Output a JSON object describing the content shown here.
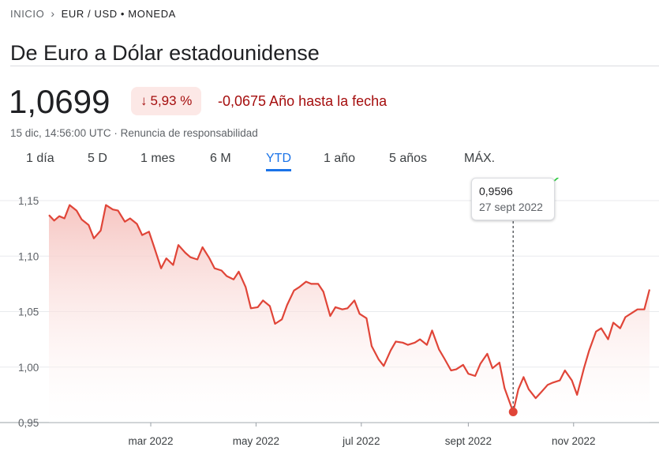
{
  "breadcrumb": {
    "home": "INICIO",
    "separator": "›",
    "current": "EUR / USD • MONEDA"
  },
  "title": "De Euro a Dólar estadounidense",
  "quote": {
    "price": "1,0699",
    "change_arrow": "↓",
    "change_percent": "5,93 %",
    "change_absolute": "-0,0675 Año hasta la fecha",
    "timestamp": "15 dic, 14:56:00 UTC",
    "meta_separator": "·",
    "disclaimer": "Renuncia de responsabilidad"
  },
  "tabs": [
    {
      "label": "1 día"
    },
    {
      "label": "5 D"
    },
    {
      "label": "1 mes"
    },
    {
      "label": "6 M"
    },
    {
      "label": "YTD"
    },
    {
      "label": "1 año"
    },
    {
      "label": "5 años"
    },
    {
      "label": "MÁX."
    }
  ],
  "active_tab": "YTD",
  "colors": {
    "line": "#e04538",
    "fill": "#f6c3bf",
    "tab_active": "#1a73e8",
    "negative": "#a50e0e",
    "annotation_arrow": "#2ecc40"
  },
  "tooltip": {
    "value": "0,9596",
    "date": "27 sept 2022"
  },
  "chart_data": {
    "type": "area",
    "title": "",
    "xlabel": "",
    "ylabel": "",
    "ylim": [
      0.95,
      1.15
    ],
    "xlim": [
      "2022-01-01",
      "2022-12-15"
    ],
    "grid": true,
    "legend": "none",
    "yticks": [
      {
        "value": 1.15,
        "label": "1,15"
      },
      {
        "value": 1.1,
        "label": "1,10"
      },
      {
        "value": 1.05,
        "label": "1,05"
      },
      {
        "value": 1.0,
        "label": "1,00"
      },
      {
        "value": 0.95,
        "label": "0,95"
      }
    ],
    "xticks": [
      {
        "value": "2022-03-01",
        "label": "mar 2022"
      },
      {
        "value": "2022-05-01",
        "label": "may 2022"
      },
      {
        "value": "2022-07-01",
        "label": "jul 2022"
      },
      {
        "value": "2022-09-01",
        "label": "sept 2022"
      },
      {
        "value": "2022-11-01",
        "label": "nov 2022"
      }
    ],
    "highlight": {
      "x": "2022-09-27",
      "y": 0.9596
    },
    "series": [
      {
        "x": [
          "2022-01-01",
          "2022-01-04",
          "2022-01-07",
          "2022-01-10",
          "2022-01-13",
          "2022-01-17",
          "2022-01-20",
          "2022-01-24",
          "2022-01-27",
          "2022-01-31",
          "2022-02-03",
          "2022-02-07",
          "2022-02-10",
          "2022-02-14",
          "2022-02-17",
          "2022-02-21",
          "2022-02-24",
          "2022-02-28",
          "2022-03-03",
          "2022-03-07",
          "2022-03-10",
          "2022-03-14",
          "2022-03-17",
          "2022-03-21",
          "2022-03-24",
          "2022-03-28",
          "2022-03-31",
          "2022-04-04",
          "2022-04-07",
          "2022-04-11",
          "2022-04-14",
          "2022-04-18",
          "2022-04-21",
          "2022-04-25",
          "2022-04-28",
          "2022-05-02",
          "2022-05-05",
          "2022-05-09",
          "2022-05-12",
          "2022-05-16",
          "2022-05-19",
          "2022-05-23",
          "2022-05-26",
          "2022-05-30",
          "2022-06-02",
          "2022-06-06",
          "2022-06-09",
          "2022-06-13",
          "2022-06-16",
          "2022-06-20",
          "2022-06-23",
          "2022-06-27",
          "2022-06-30",
          "2022-07-04",
          "2022-07-07",
          "2022-07-11",
          "2022-07-14",
          "2022-07-18",
          "2022-07-21",
          "2022-07-25",
          "2022-07-28",
          "2022-08-01",
          "2022-08-04",
          "2022-08-08",
          "2022-08-11",
          "2022-08-15",
          "2022-08-18",
          "2022-08-22",
          "2022-08-25",
          "2022-08-29",
          "2022-09-01",
          "2022-09-05",
          "2022-09-08",
          "2022-09-12",
          "2022-09-15",
          "2022-09-19",
          "2022-09-22",
          "2022-09-27",
          "2022-09-30",
          "2022-10-03",
          "2022-10-06",
          "2022-10-10",
          "2022-10-13",
          "2022-10-17",
          "2022-10-20",
          "2022-10-24",
          "2022-10-27",
          "2022-10-31",
          "2022-11-03",
          "2022-11-07",
          "2022-11-10",
          "2022-11-14",
          "2022-11-17",
          "2022-11-21",
          "2022-11-24",
          "2022-11-28",
          "2022-12-01",
          "2022-12-05",
          "2022-12-08",
          "2022-12-12",
          "2022-12-15"
        ],
        "y": [
          1.137,
          1.132,
          1.136,
          1.134,
          1.146,
          1.141,
          1.133,
          1.128,
          1.116,
          1.123,
          1.146,
          1.142,
          1.141,
          1.131,
          1.134,
          1.129,
          1.119,
          1.122,
          1.108,
          1.089,
          1.098,
          1.092,
          1.11,
          1.103,
          1.099,
          1.097,
          1.108,
          1.098,
          1.089,
          1.087,
          1.082,
          1.079,
          1.086,
          1.072,
          1.053,
          1.054,
          1.06,
          1.055,
          1.039,
          1.043,
          1.056,
          1.069,
          1.072,
          1.077,
          1.075,
          1.075,
          1.068,
          1.046,
          1.054,
          1.052,
          1.053,
          1.06,
          1.048,
          1.044,
          1.019,
          1.007,
          1.001,
          1.015,
          1.023,
          1.022,
          1.02,
          1.022,
          1.025,
          1.02,
          1.033,
          1.016,
          1.008,
          0.997,
          0.998,
          1.002,
          0.994,
          0.992,
          1.003,
          1.012,
          0.999,
          1.004,
          0.981,
          0.9596,
          0.98,
          0.991,
          0.98,
          0.972,
          0.977,
          0.984,
          0.986,
          0.988,
          0.997,
          0.988,
          0.975,
          0.999,
          1.015,
          1.032,
          1.035,
          1.025,
          1.04,
          1.035,
          1.045,
          1.049,
          1.052,
          1.052,
          1.0699
        ]
      }
    ]
  }
}
